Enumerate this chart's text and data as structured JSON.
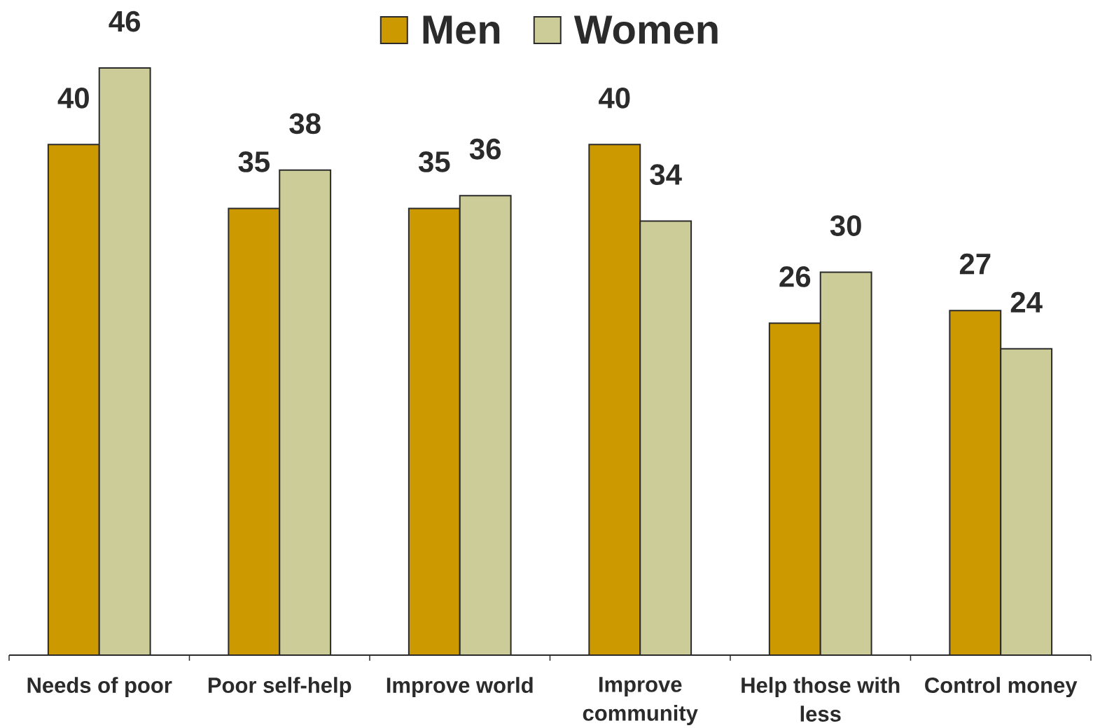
{
  "chart_data": {
    "type": "bar",
    "categories": [
      "Needs of poor",
      "Poor self-help",
      "Improve world",
      "Improve community",
      "Help those with less",
      "Control money"
    ],
    "series": [
      {
        "name": "Men",
        "color": "#cc9900",
        "values": [
          40,
          35,
          35,
          40,
          26,
          27
        ]
      },
      {
        "name": "Women",
        "color": "#cccc99",
        "values": [
          46,
          38,
          36,
          34,
          30,
          24
        ]
      }
    ],
    "ylim": [
      0,
      46
    ],
    "data_labels": true,
    "legend": "top",
    "tick_labels": "x"
  }
}
